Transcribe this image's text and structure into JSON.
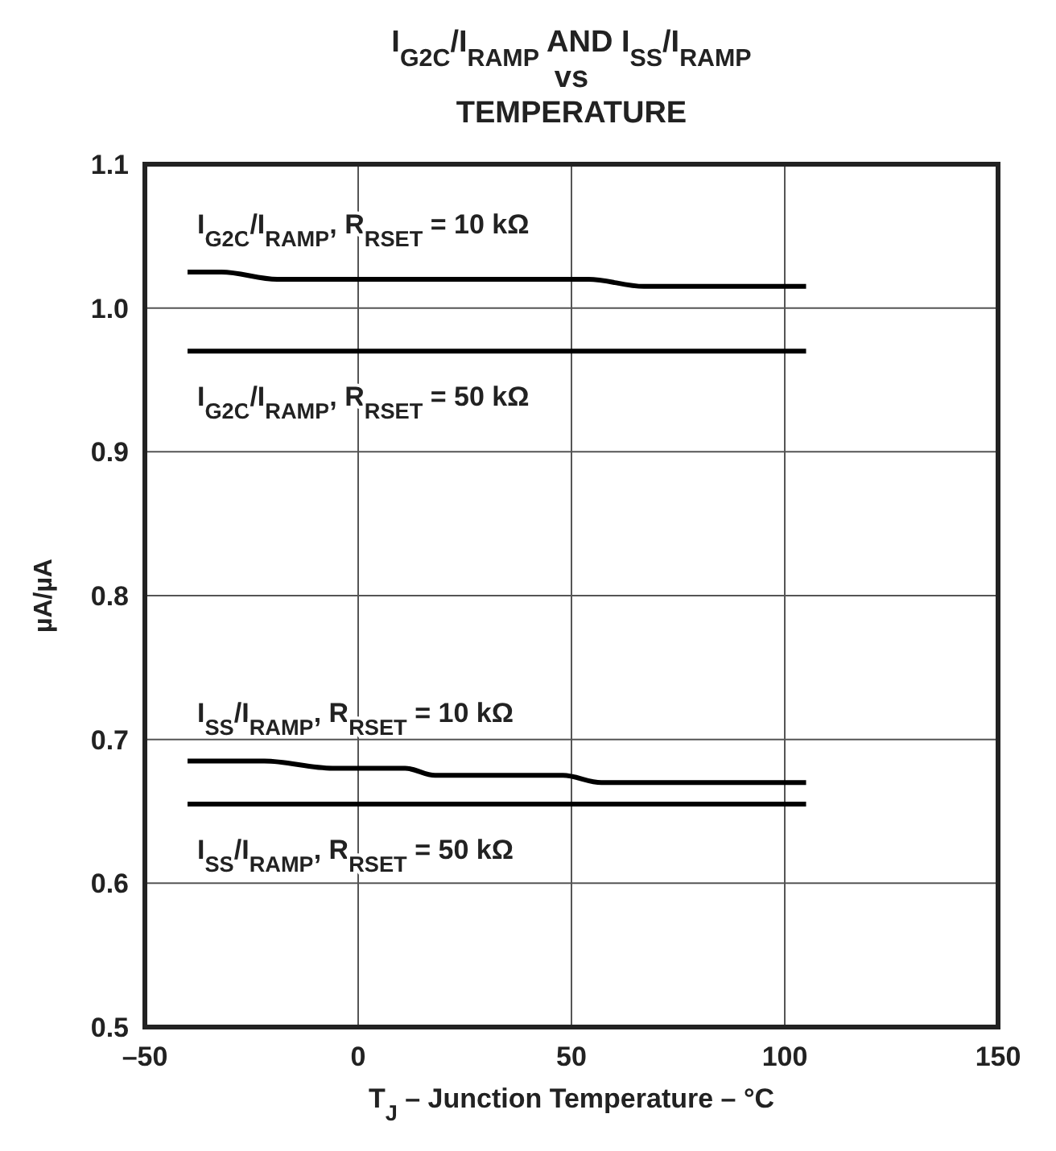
{
  "chart_data": {
    "type": "line",
    "title": "I$_{G2C}$/I$_{RAMP}$ AND I$_{SS}$/I$_{RAMP}$\nvs\nTEMPERATURE",
    "xlabel": "T$_{J}$ – Junction Temperature – °C",
    "ylabel": "µA/µA",
    "xlim": [
      -50,
      150
    ],
    "xticks": [
      {
        "value": -50,
        "label": "–50"
      },
      0,
      50,
      100,
      150
    ],
    "ylim": [
      0.5,
      1.1
    ],
    "yticks": [
      0.5,
      0.6,
      0.7,
      0.8,
      0.9,
      {
        "value": 1,
        "label": "1.0"
      },
      1.1
    ],
    "grid": true,
    "marker": "none",
    "line_style": "solid",
    "series": [
      {
        "name": "I$_{G2C}$/I$_{RAMP}$, R$_{RSET}$ = 10 kΩ",
        "color": "#000000",
        "x": [
          -40,
          -32,
          -19,
          54,
          67,
          105
        ],
        "values": [
          1.025,
          1.025,
          1.02,
          1.02,
          1.015,
          1.015
        ]
      },
      {
        "name": "I$_{G2C}$/I$_{RAMP}$, R$_{RSET}$ = 50 kΩ",
        "color": "#000000",
        "x": [
          -40,
          105
        ],
        "values": [
          0.97,
          0.97
        ]
      },
      {
        "name": "I$_{SS}$/I$_{RAMP}$, R$_{RSET}$ = 10 kΩ",
        "color": "#000000",
        "x": [
          -40,
          -22,
          -6,
          11,
          18,
          48,
          57,
          105
        ],
        "values": [
          0.685,
          0.685,
          0.68,
          0.68,
          0.675,
          0.675,
          0.67,
          0.67
        ]
      },
      {
        "name": "I$_{SS}$/I$_{RAMP}$, R$_{RSET}$ =  50 kΩ",
        "color": "#000000",
        "x": [
          -40,
          105
        ],
        "values": [
          0.655,
          0.655
        ]
      }
    ]
  }
}
